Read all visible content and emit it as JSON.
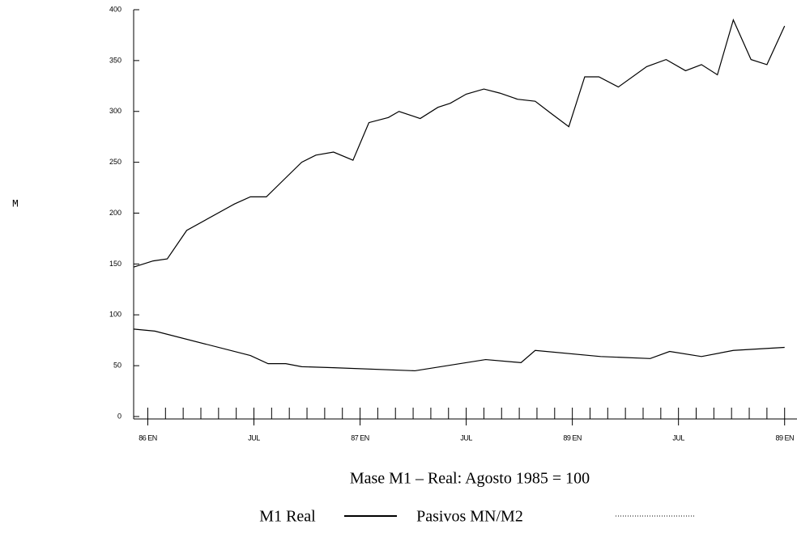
{
  "chart_data": {
    "type": "line",
    "title": "Mase M1 – Real:  Agosto 1985 = 100",
    "y_label": "M",
    "series": [
      {
        "name": "M1 Real",
        "color": "#000000",
        "dash": "none",
        "x": [
          -0.8,
          0.3,
          1.1,
          2.2,
          4.9,
          5.8,
          6.7,
          7.7,
          8.7,
          9.5,
          10.5,
          11.6,
          12.5,
          13.6,
          14.2,
          15.4,
          16.4,
          17.1,
          18.0,
          19.0,
          19.9,
          20.9,
          21.9,
          22.8,
          23.8,
          24.7,
          25.5,
          26.6,
          28.2,
          29.3,
          30.4,
          31.3,
          32.2,
          33.1,
          34.1,
          35.0,
          36.0
        ],
        "values": [
          147,
          153,
          155,
          183,
          209,
          216,
          216,
          233,
          250,
          257,
          260,
          252,
          289,
          294,
          300,
          293,
          304,
          308,
          317,
          322,
          318,
          312,
          310,
          298,
          285,
          334,
          334,
          324,
          344,
          351,
          340,
          346,
          336,
          390,
          351,
          346,
          384
        ]
      },
      {
        "name": "Pasivos MN/M2",
        "color": "#000000",
        "dash": "1,2",
        "x": [
          -0.8,
          0.4,
          5.8,
          6.8,
          7.8,
          8.7,
          10.5,
          15.1,
          19.1,
          21.1,
          21.9,
          25.6,
          28.4,
          29.5,
          31.3,
          33.1,
          36.0
        ],
        "values": [
          86,
          84,
          60,
          52,
          52,
          49,
          48,
          45,
          56,
          53,
          65,
          59,
          57,
          64,
          59,
          65,
          68
        ]
      }
    ],
    "xlim": [
      -0.8,
      36.7
    ],
    "xticks": [
      {
        "value": 0,
        "label": "86 EN"
      },
      {
        "value": 6,
        "label": "JUL"
      },
      {
        "value": 12,
        "label": "87 EN"
      },
      {
        "value": 18,
        "label": "JUL"
      },
      {
        "value": 24,
        "label": "89 EN"
      },
      {
        "value": 30,
        "label": "JUL"
      },
      {
        "value": 36,
        "label": "89 EN"
      }
    ],
    "xminorticks": [
      1,
      2,
      3,
      4,
      5,
      7,
      8,
      9,
      10,
      11,
      13,
      14,
      15,
      16,
      17,
      19,
      20,
      21,
      22,
      23,
      25,
      26,
      27,
      28,
      29,
      31,
      32,
      33,
      34,
      35
    ],
    "ylim": [
      0,
      400
    ],
    "yticks": [
      0,
      50,
      100,
      150,
      200,
      250,
      300,
      350,
      400
    ],
    "grid": false
  }
}
